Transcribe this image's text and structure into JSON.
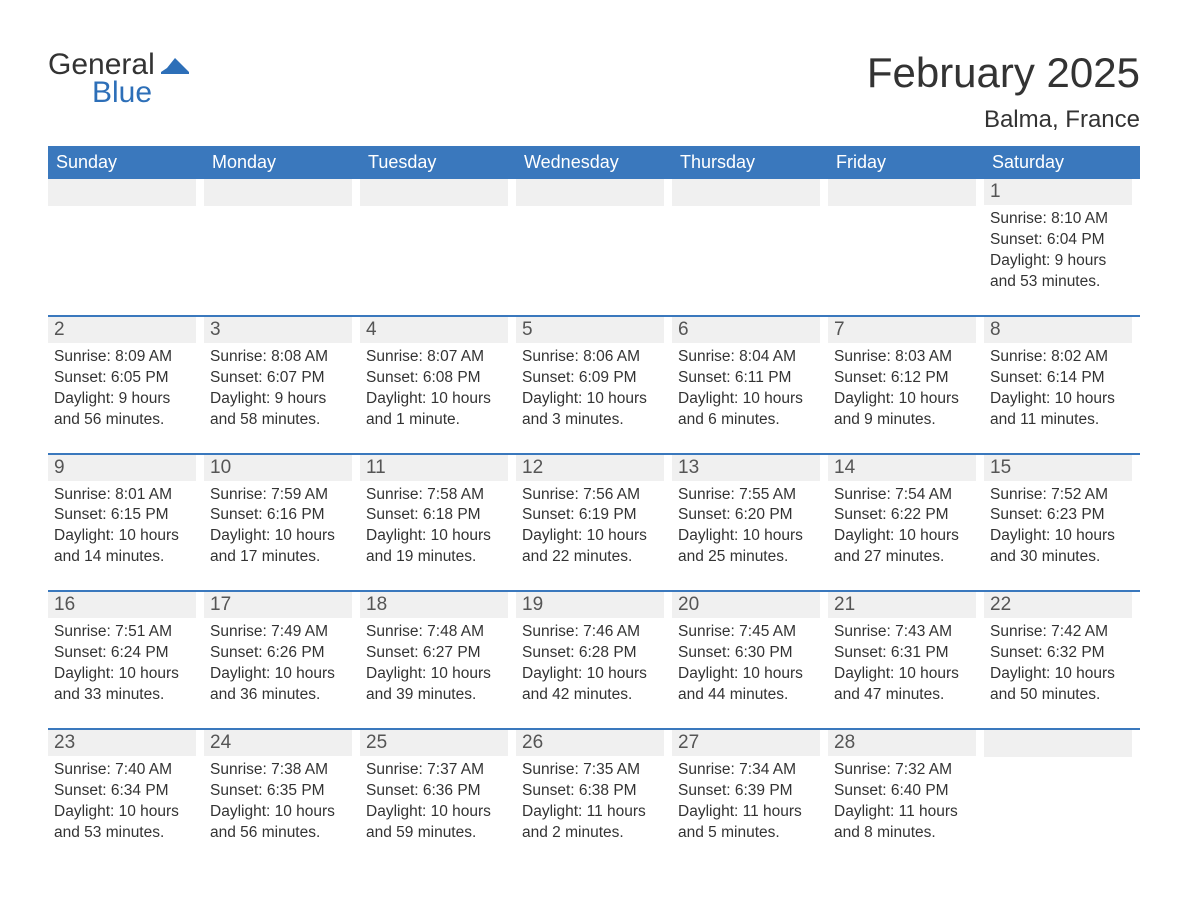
{
  "logo": {
    "general": "General",
    "blue": "Blue"
  },
  "title": "February 2025",
  "location": "Balma, France",
  "colors": {
    "header_bg": "#3a78bd",
    "row_stripe": "#f0f0f0",
    "border": "#3a78bd",
    "text": "#333333",
    "logo_blue": "#2d6fb8"
  },
  "weekdays": [
    "Sunday",
    "Monday",
    "Tuesday",
    "Wednesday",
    "Thursday",
    "Friday",
    "Saturday"
  ],
  "weeks": [
    [
      null,
      null,
      null,
      null,
      null,
      null,
      {
        "n": "1",
        "sunrise": "Sunrise: 8:10 AM",
        "sunset": "Sunset: 6:04 PM",
        "dl1": "Daylight: 9 hours",
        "dl2": "and 53 minutes."
      }
    ],
    [
      {
        "n": "2",
        "sunrise": "Sunrise: 8:09 AM",
        "sunset": "Sunset: 6:05 PM",
        "dl1": "Daylight: 9 hours",
        "dl2": "and 56 minutes."
      },
      {
        "n": "3",
        "sunrise": "Sunrise: 8:08 AM",
        "sunset": "Sunset: 6:07 PM",
        "dl1": "Daylight: 9 hours",
        "dl2": "and 58 minutes."
      },
      {
        "n": "4",
        "sunrise": "Sunrise: 8:07 AM",
        "sunset": "Sunset: 6:08 PM",
        "dl1": "Daylight: 10 hours",
        "dl2": "and 1 minute."
      },
      {
        "n": "5",
        "sunrise": "Sunrise: 8:06 AM",
        "sunset": "Sunset: 6:09 PM",
        "dl1": "Daylight: 10 hours",
        "dl2": "and 3 minutes."
      },
      {
        "n": "6",
        "sunrise": "Sunrise: 8:04 AM",
        "sunset": "Sunset: 6:11 PM",
        "dl1": "Daylight: 10 hours",
        "dl2": "and 6 minutes."
      },
      {
        "n": "7",
        "sunrise": "Sunrise: 8:03 AM",
        "sunset": "Sunset: 6:12 PM",
        "dl1": "Daylight: 10 hours",
        "dl2": "and 9 minutes."
      },
      {
        "n": "8",
        "sunrise": "Sunrise: 8:02 AM",
        "sunset": "Sunset: 6:14 PM",
        "dl1": "Daylight: 10 hours",
        "dl2": "and 11 minutes."
      }
    ],
    [
      {
        "n": "9",
        "sunrise": "Sunrise: 8:01 AM",
        "sunset": "Sunset: 6:15 PM",
        "dl1": "Daylight: 10 hours",
        "dl2": "and 14 minutes."
      },
      {
        "n": "10",
        "sunrise": "Sunrise: 7:59 AM",
        "sunset": "Sunset: 6:16 PM",
        "dl1": "Daylight: 10 hours",
        "dl2": "and 17 minutes."
      },
      {
        "n": "11",
        "sunrise": "Sunrise: 7:58 AM",
        "sunset": "Sunset: 6:18 PM",
        "dl1": "Daylight: 10 hours",
        "dl2": "and 19 minutes."
      },
      {
        "n": "12",
        "sunrise": "Sunrise: 7:56 AM",
        "sunset": "Sunset: 6:19 PM",
        "dl1": "Daylight: 10 hours",
        "dl2": "and 22 minutes."
      },
      {
        "n": "13",
        "sunrise": "Sunrise: 7:55 AM",
        "sunset": "Sunset: 6:20 PM",
        "dl1": "Daylight: 10 hours",
        "dl2": "and 25 minutes."
      },
      {
        "n": "14",
        "sunrise": "Sunrise: 7:54 AM",
        "sunset": "Sunset: 6:22 PM",
        "dl1": "Daylight: 10 hours",
        "dl2": "and 27 minutes."
      },
      {
        "n": "15",
        "sunrise": "Sunrise: 7:52 AM",
        "sunset": "Sunset: 6:23 PM",
        "dl1": "Daylight: 10 hours",
        "dl2": "and 30 minutes."
      }
    ],
    [
      {
        "n": "16",
        "sunrise": "Sunrise: 7:51 AM",
        "sunset": "Sunset: 6:24 PM",
        "dl1": "Daylight: 10 hours",
        "dl2": "and 33 minutes."
      },
      {
        "n": "17",
        "sunrise": "Sunrise: 7:49 AM",
        "sunset": "Sunset: 6:26 PM",
        "dl1": "Daylight: 10 hours",
        "dl2": "and 36 minutes."
      },
      {
        "n": "18",
        "sunrise": "Sunrise: 7:48 AM",
        "sunset": "Sunset: 6:27 PM",
        "dl1": "Daylight: 10 hours",
        "dl2": "and 39 minutes."
      },
      {
        "n": "19",
        "sunrise": "Sunrise: 7:46 AM",
        "sunset": "Sunset: 6:28 PM",
        "dl1": "Daylight: 10 hours",
        "dl2": "and 42 minutes."
      },
      {
        "n": "20",
        "sunrise": "Sunrise: 7:45 AM",
        "sunset": "Sunset: 6:30 PM",
        "dl1": "Daylight: 10 hours",
        "dl2": "and 44 minutes."
      },
      {
        "n": "21",
        "sunrise": "Sunrise: 7:43 AM",
        "sunset": "Sunset: 6:31 PM",
        "dl1": "Daylight: 10 hours",
        "dl2": "and 47 minutes."
      },
      {
        "n": "22",
        "sunrise": "Sunrise: 7:42 AM",
        "sunset": "Sunset: 6:32 PM",
        "dl1": "Daylight: 10 hours",
        "dl2": "and 50 minutes."
      }
    ],
    [
      {
        "n": "23",
        "sunrise": "Sunrise: 7:40 AM",
        "sunset": "Sunset: 6:34 PM",
        "dl1": "Daylight: 10 hours",
        "dl2": "and 53 minutes."
      },
      {
        "n": "24",
        "sunrise": "Sunrise: 7:38 AM",
        "sunset": "Sunset: 6:35 PM",
        "dl1": "Daylight: 10 hours",
        "dl2": "and 56 minutes."
      },
      {
        "n": "25",
        "sunrise": "Sunrise: 7:37 AM",
        "sunset": "Sunset: 6:36 PM",
        "dl1": "Daylight: 10 hours",
        "dl2": "and 59 minutes."
      },
      {
        "n": "26",
        "sunrise": "Sunrise: 7:35 AM",
        "sunset": "Sunset: 6:38 PM",
        "dl1": "Daylight: 11 hours",
        "dl2": "and 2 minutes."
      },
      {
        "n": "27",
        "sunrise": "Sunrise: 7:34 AM",
        "sunset": "Sunset: 6:39 PM",
        "dl1": "Daylight: 11 hours",
        "dl2": "and 5 minutes."
      },
      {
        "n": "28",
        "sunrise": "Sunrise: 7:32 AM",
        "sunset": "Sunset: 6:40 PM",
        "dl1": "Daylight: 11 hours",
        "dl2": "and 8 minutes."
      },
      null
    ]
  ]
}
